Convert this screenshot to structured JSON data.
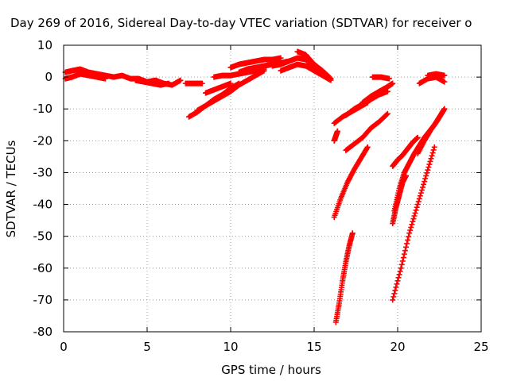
{
  "chart_data": {
    "type": "scatter",
    "title": "Day 269 of 2016, Sidereal Day-to-day VTEC variation (SDTVAR) for receiver o",
    "xlabel": "GPS time / hours",
    "ylabel": "SDTVAR / TECUs",
    "xlim": [
      0,
      25
    ],
    "ylim": [
      -80,
      10
    ],
    "xticks": [
      0,
      5,
      10,
      15,
      20,
      25
    ],
    "yticks": [
      10,
      0,
      -10,
      -20,
      -30,
      -40,
      -50,
      -60,
      -70,
      -80
    ],
    "grid": true,
    "legend": "none",
    "marker": "+",
    "color": "#ff0000",
    "series": [
      {
        "x": [
          0.1,
          0.5,
          1.0,
          1.5,
          2.0,
          2.5,
          3.0,
          3.5,
          4.0,
          4.5,
          5.0,
          5.5,
          6.0,
          6.5,
          7.0
        ],
        "y": [
          1.5,
          2.0,
          2.5,
          1.5,
          1.0,
          0.5,
          0.0,
          0.5,
          -0.5,
          -0.5,
          -1.5,
          -1.0,
          -2.0,
          -2.5,
          -1.0
        ]
      },
      {
        "x": [
          0.1,
          0.5,
          1.0,
          1.5,
          2.0,
          2.5
        ],
        "y": [
          -0.5,
          0.0,
          1.0,
          0.5,
          0.0,
          -0.5
        ]
      },
      {
        "x": [
          4.3,
          4.8,
          5.3,
          5.8,
          6.3
        ],
        "y": [
          -1.0,
          -1.5,
          -2.0,
          -2.5,
          -2.0
        ]
      },
      {
        "x": [
          7.3,
          7.8,
          8.3
        ],
        "y": [
          -2.0,
          -2.0,
          -2.0
        ]
      },
      {
        "x": [
          7.5,
          8.0,
          8.5,
          9.0,
          9.5,
          10.0,
          10.5,
          11.0,
          11.5,
          12.0
        ],
        "y": [
          -12.5,
          -11.0,
          -9.0,
          -7.5,
          -6.0,
          -4.5,
          -2.5,
          -1.0,
          0.5,
          2.0
        ]
      },
      {
        "x": [
          8.0,
          8.5,
          9.0,
          9.5,
          10.0,
          10.5
        ],
        "y": [
          -10.5,
          -9.0,
          -7.0,
          -5.5,
          -3.5,
          -2.0
        ]
      },
      {
        "x": [
          8.5,
          9.0,
          9.5,
          10.0
        ],
        "y": [
          -5.0,
          -4.0,
          -3.0,
          -2.0
        ]
      },
      {
        "x": [
          9.0,
          9.5,
          10.0,
          10.5,
          11.0,
          11.5,
          12.0
        ],
        "y": [
          0.0,
          0.5,
          0.5,
          1.0,
          1.5,
          2.0,
          2.5
        ]
      },
      {
        "x": [
          10.0,
          10.5,
          11.0,
          11.5,
          12.0,
          12.5,
          13.0
        ],
        "y": [
          3.0,
          4.0,
          4.5,
          5.0,
          5.5,
          5.5,
          6.0
        ]
      },
      {
        "x": [
          10.5,
          11.0,
          11.5,
          12.0,
          12.5,
          13.0,
          13.5
        ],
        "y": [
          1.5,
          2.5,
          3.0,
          3.5,
          4.0,
          4.5,
          5.0
        ]
      },
      {
        "x": [
          12.5,
          13.0,
          13.5,
          14.0,
          14.5,
          15.0,
          15.5,
          16.0
        ],
        "y": [
          3.5,
          4.0,
          5.0,
          6.0,
          5.5,
          3.0,
          1.0,
          -0.5
        ]
      },
      {
        "x": [
          13.0,
          13.5,
          14.0,
          14.5,
          15.0,
          15.5,
          16.0
        ],
        "y": [
          2.0,
          3.0,
          4.0,
          3.5,
          2.0,
          0.5,
          -1.0
        ]
      },
      {
        "x": [
          14.0,
          14.5,
          15.0,
          15.5,
          16.0
        ],
        "y": [
          8.0,
          7.0,
          4.0,
          2.0,
          -0.5
        ]
      },
      {
        "x": [
          16.2,
          16.7,
          17.2,
          17.7,
          18.2
        ],
        "y": [
          -14.5,
          -12.5,
          -11.0,
          -9.5,
          -8.0
        ]
      },
      {
        "x": [
          16.9,
          17.4,
          17.9,
          18.4,
          18.9,
          19.4
        ],
        "y": [
          -12.0,
          -10.0,
          -8.5,
          -7.0,
          -5.5,
          -4.5
        ]
      },
      {
        "x": [
          17.9,
          18.4,
          18.9,
          19.4,
          19.7
        ],
        "y": [
          -8.0,
          -6.0,
          -4.5,
          -3.0,
          -2.0
        ]
      },
      {
        "x": [
          16.9,
          17.4,
          17.9,
          18.4,
          18.9,
          19.4
        ],
        "y": [
          -23.0,
          -21.0,
          -19.0,
          -16.0,
          -14.0,
          -11.5
        ]
      },
      {
        "x": [
          16.2,
          16.3,
          16.4
        ],
        "y": [
          -20.0,
          -18.5,
          -17.0
        ]
      },
      {
        "x": [
          16.2,
          16.6,
          17.0,
          17.4,
          17.8,
          18.2
        ],
        "y": [
          -44.0,
          -38.0,
          -33.0,
          -29.0,
          -25.5,
          -22.0
        ]
      },
      {
        "x": [
          16.3,
          16.5,
          16.7,
          16.9,
          17.1,
          17.3
        ],
        "y": [
          -77.0,
          -71.0,
          -64.0,
          -58.0,
          -53.0,
          -49.0
        ]
      },
      {
        "x": [
          18.5,
          19.0,
          19.5
        ],
        "y": [
          0.0,
          0.0,
          -0.5
        ]
      },
      {
        "x": [
          19.7,
          19.9,
          20.1,
          20.3,
          20.5
        ],
        "y": [
          -46.0,
          -41.0,
          -37.0,
          -33.0,
          -31.0
        ]
      },
      {
        "x": [
          19.8,
          20.1,
          20.4,
          20.7,
          21.0,
          21.3,
          21.6,
          21.9,
          22.2,
          22.5,
          22.8
        ],
        "y": [
          -42.0,
          -35.0,
          -30.0,
          -27.0,
          -24.0,
          -21.5,
          -19.0,
          -17.0,
          -15.0,
          -12.5,
          -10.0
        ]
      },
      {
        "x": [
          19.7,
          20.0,
          20.3,
          20.6,
          20.9,
          21.2
        ],
        "y": [
          -28.0,
          -26.0,
          -24.5,
          -22.5,
          -20.5,
          -19.0
        ]
      },
      {
        "x": [
          19.7,
          20.2,
          20.7,
          21.2,
          21.7,
          22.2
        ],
        "y": [
          -70.0,
          -60.0,
          -49.0,
          -40.0,
          -31.0,
          -22.0
        ]
      },
      {
        "x": [
          21.2,
          21.6,
          22.0,
          22.4,
          22.8
        ],
        "y": [
          -24.0,
          -20.0,
          -16.5,
          -13.5,
          -10.0
        ]
      },
      {
        "x": [
          21.3,
          21.8,
          22.3,
          22.8
        ],
        "y": [
          -2.0,
          -0.5,
          0.0,
          -1.5
        ]
      },
      {
        "x": [
          21.8,
          22.3,
          22.8
        ],
        "y": [
          0.5,
          1.0,
          0.5
        ]
      }
    ]
  }
}
